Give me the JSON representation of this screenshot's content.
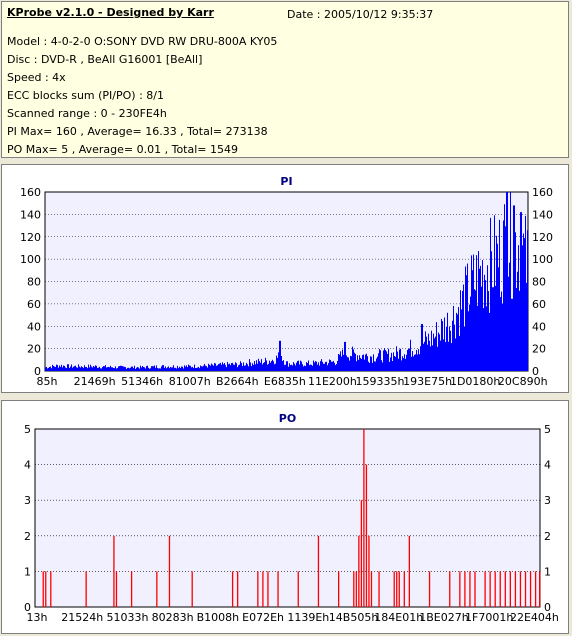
{
  "info": {
    "title": "KProbe v2.1.0 - Designed by Karr",
    "date": "Date : 2005/10/12 9:35:37",
    "lines": [
      "Model : 4-0-2-0 O:SONY    DVD RW DRU-800A  KY05",
      "Disc : DVD-R , BeAll G16001 [BeAll]",
      "Speed : 4x",
      "ECC blocks sum (PI/PO) : 8/1",
      "Scanned range : 0 - 230FE4h",
      "PI Max= 160 , Average= 16.33 , Total= 273138",
      "PO Max= 5 , Average= 0.01 , Total= 1549"
    ]
  },
  "colors": {
    "pi": "#0000ff",
    "po": "#ff0000",
    "plot_bg": "#f0f0ff"
  },
  "chart_data": [
    {
      "type": "bar",
      "title": "PI",
      "ylim": [
        0,
        160
      ],
      "yticks": [
        "0",
        "20",
        "40",
        "60",
        "80",
        "100",
        "120",
        "140",
        "160"
      ],
      "xtick_labels": [
        "85h",
        "21469h",
        "51346h",
        "81007h",
        "B2664h",
        "E6835h",
        "11E200h",
        "159335h",
        "193E75h",
        "1D0180h",
        "20C890h"
      ],
      "grid": true,
      "envelope": [
        [
          0.0,
          4
        ],
        [
          0.03,
          6
        ],
        [
          0.05,
          5
        ],
        [
          0.1,
          5
        ],
        [
          0.15,
          4
        ],
        [
          0.2,
          4
        ],
        [
          0.25,
          5
        ],
        [
          0.3,
          5
        ],
        [
          0.35,
          6
        ],
        [
          0.38,
          7
        ],
        [
          0.4,
          7
        ],
        [
          0.42,
          9
        ],
        [
          0.45,
          10
        ],
        [
          0.47,
          12
        ],
        [
          0.48,
          14
        ],
        [
          0.485,
          25
        ],
        [
          0.49,
          15
        ],
        [
          0.5,
          8
        ],
        [
          0.55,
          8
        ],
        [
          0.57,
          9
        ],
        [
          0.6,
          10
        ],
        [
          0.62,
          20
        ],
        [
          0.64,
          18
        ],
        [
          0.67,
          16
        ],
        [
          0.7,
          17
        ],
        [
          0.72,
          18
        ],
        [
          0.74,
          21
        ],
        [
          0.76,
          25
        ],
        [
          0.78,
          30
        ],
        [
          0.8,
          35
        ],
        [
          0.82,
          45
        ],
        [
          0.84,
          55
        ],
        [
          0.86,
          70
        ],
        [
          0.88,
          90
        ],
        [
          0.9,
          105
        ],
        [
          0.92,
          115
        ],
        [
          0.94,
          125
        ],
        [
          0.95,
          135
        ],
        [
          0.96,
          145
        ],
        [
          0.97,
          135
        ],
        [
          0.98,
          140
        ],
        [
          0.99,
          125
        ],
        [
          1.0,
          110
        ]
      ],
      "peaks": [
        [
          0.485,
          27
        ],
        [
          0.62,
          26
        ],
        [
          0.78,
          42
        ],
        [
          0.955,
          160
        ],
        [
          0.97,
          148
        ],
        [
          0.985,
          142
        ]
      ]
    },
    {
      "type": "bar",
      "title": "PO",
      "ylim": [
        0,
        5
      ],
      "yticks": [
        "0",
        "1",
        "2",
        "3",
        "4",
        "5"
      ],
      "xtick_labels": [
        "13h",
        "21524h",
        "51033h",
        "80283h",
        "B1008h",
        "E072Eh",
        "1139Eh",
        "14B505h",
        "184E01h",
        "1BE027h",
        "1F7001h",
        "22E404h"
      ],
      "grid": true,
      "bars": [
        [
          0.015,
          1
        ],
        [
          0.02,
          1
        ],
        [
          0.03,
          1
        ],
        [
          0.1,
          1
        ],
        [
          0.155,
          2
        ],
        [
          0.16,
          1
        ],
        [
          0.19,
          1
        ],
        [
          0.24,
          1
        ],
        [
          0.265,
          2
        ],
        [
          0.31,
          1
        ],
        [
          0.39,
          1
        ],
        [
          0.4,
          1
        ],
        [
          0.44,
          1
        ],
        [
          0.45,
          1
        ],
        [
          0.46,
          1
        ],
        [
          0.48,
          1
        ],
        [
          0.52,
          1
        ],
        [
          0.56,
          2
        ],
        [
          0.6,
          1
        ],
        [
          0.63,
          1
        ],
        [
          0.635,
          1
        ],
        [
          0.64,
          2
        ],
        [
          0.645,
          3
        ],
        [
          0.65,
          5
        ],
        [
          0.655,
          4
        ],
        [
          0.66,
          2
        ],
        [
          0.665,
          1
        ],
        [
          0.68,
          1
        ],
        [
          0.71,
          1
        ],
        [
          0.715,
          1
        ],
        [
          0.72,
          1
        ],
        [
          0.73,
          1
        ],
        [
          0.74,
          2
        ],
        [
          0.78,
          1
        ],
        [
          0.82,
          1
        ],
        [
          0.84,
          1
        ],
        [
          0.85,
          1
        ],
        [
          0.86,
          1
        ],
        [
          0.87,
          1
        ],
        [
          0.89,
          1
        ],
        [
          0.9,
          1
        ],
        [
          0.91,
          1
        ],
        [
          0.92,
          1
        ],
        [
          0.93,
          1
        ],
        [
          0.94,
          1
        ],
        [
          0.95,
          1
        ],
        [
          0.96,
          1
        ],
        [
          0.97,
          1
        ],
        [
          0.98,
          1
        ],
        [
          0.99,
          1
        ],
        [
          1.0,
          1
        ]
      ]
    }
  ]
}
